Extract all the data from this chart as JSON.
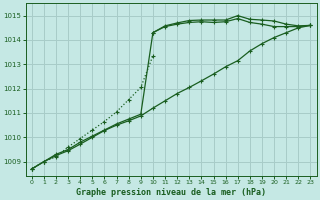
{
  "title": "Graphe pression niveau de la mer (hPa)",
  "bg_color": "#c5e8e4",
  "grid_color": "#a8ccc8",
  "line_color": "#1a5e20",
  "xlim": [
    -0.5,
    23.5
  ],
  "ylim": [
    1008.4,
    1015.5
  ],
  "yticks": [
    1009,
    1010,
    1011,
    1012,
    1013,
    1014,
    1015
  ],
  "xticks": [
    0,
    1,
    2,
    3,
    4,
    5,
    6,
    7,
    8,
    9,
    10,
    11,
    12,
    13,
    14,
    15,
    16,
    17,
    18,
    19,
    20,
    21,
    22,
    23
  ],
  "series1_dotted": {
    "x": [
      0,
      1,
      2,
      3,
      4,
      5,
      6,
      7,
      8,
      9,
      10
    ],
    "y": [
      1008.7,
      1009.0,
      1009.2,
      1009.6,
      1009.95,
      1010.3,
      1010.65,
      1011.05,
      1011.55,
      1012.05,
      1013.35
    ]
  },
  "series2_top": {
    "x": [
      0,
      1,
      2,
      3,
      4,
      5,
      6,
      7,
      8,
      9,
      10,
      11,
      12,
      13,
      14,
      15,
      16,
      17,
      18,
      19,
      20,
      21,
      22,
      23
    ],
    "y": [
      1008.7,
      1009.0,
      1009.3,
      1009.5,
      1009.8,
      1010.05,
      1010.3,
      1010.55,
      1010.75,
      1010.95,
      1014.3,
      1014.55,
      1014.65,
      1014.72,
      1014.75,
      1014.72,
      1014.75,
      1014.88,
      1014.72,
      1014.65,
      1014.55,
      1014.55,
      1014.55,
      1014.6
    ]
  },
  "series3_mid": {
    "x": [
      0,
      1,
      2,
      3,
      4,
      5,
      6,
      7,
      8,
      9,
      10,
      11,
      12,
      13,
      14,
      15,
      16,
      17,
      18,
      19,
      20,
      21,
      22,
      23
    ],
    "y": [
      1008.7,
      1009.0,
      1009.25,
      1009.45,
      1009.72,
      1010.0,
      1010.28,
      1010.5,
      1010.68,
      1010.88,
      1011.2,
      1011.5,
      1011.8,
      1012.05,
      1012.32,
      1012.6,
      1012.9,
      1013.15,
      1013.55,
      1013.85,
      1014.1,
      1014.3,
      1014.5,
      1014.6
    ]
  },
  "series4_top2": {
    "x": [
      10,
      11,
      12,
      13,
      14,
      15,
      16,
      17,
      18,
      19,
      20,
      21,
      22,
      23
    ],
    "y": [
      1014.3,
      1014.58,
      1014.7,
      1014.8,
      1014.82,
      1014.82,
      1014.82,
      1015.0,
      1014.85,
      1014.82,
      1014.78,
      1014.65,
      1014.58,
      1014.6
    ]
  }
}
